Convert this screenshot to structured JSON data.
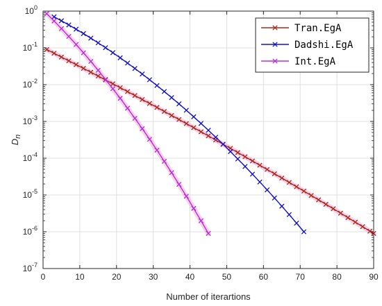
{
  "chart_data": {
    "type": "line",
    "xlabel": "Number of iterartions",
    "ylabel": "D",
    "ylabel_subscript": "n",
    "x_scale": "linear",
    "y_scale": "log",
    "xlim": [
      0,
      90
    ],
    "ylim": [
      1e-07,
      1
    ],
    "x_ticks": [
      0,
      10,
      20,
      30,
      40,
      50,
      60,
      70,
      80,
      90
    ],
    "y_ticks": [
      {
        "value": 1e-07,
        "base": "10",
        "exp": "-7"
      },
      {
        "value": 1e-06,
        "base": "10",
        "exp": "-6"
      },
      {
        "value": 1e-05,
        "base": "10",
        "exp": "-5"
      },
      {
        "value": 0.0001,
        "base": "10",
        "exp": "-4"
      },
      {
        "value": 0.001,
        "base": "10",
        "exp": "-3"
      },
      {
        "value": 0.01,
        "base": "10",
        "exp": "-2"
      },
      {
        "value": 0.1,
        "base": "10",
        "exp": "-1"
      },
      {
        "value": 1,
        "base": "10",
        "exp": "0"
      }
    ],
    "grid": true,
    "legend_position": "top-right",
    "series": [
      {
        "name": "Tran.EgA",
        "color": "#a52a1a",
        "marker": "x",
        "x_start": 1,
        "x_end": 90,
        "x_step": 2,
        "y_start": 0.09,
        "y_end": 9e-07
      },
      {
        "name": "Dadshi.EgA",
        "color": "#1010cc",
        "marker": "x",
        "x_start": 3,
        "x_end": 71,
        "x_step": 2,
        "y_start": 0.7,
        "y_end": 1e-06
      },
      {
        "name": "Int.EgA",
        "color": "#b030d8",
        "marker": "x",
        "x_start": 1,
        "x_end": 45,
        "x_step": 2,
        "y_start": 0.85,
        "y_end": 9e-07
      }
    ],
    "highlight_color": "#f5a8d8"
  }
}
